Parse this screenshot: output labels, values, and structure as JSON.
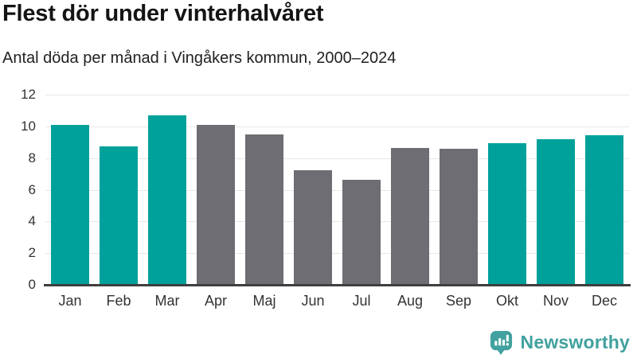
{
  "header": {
    "title": "Flest dör under vinterhalvåret",
    "subtitle": "Antal döda per månad i Vingåkers kommun, 2000–2024"
  },
  "chart_data": {
    "type": "bar",
    "title": "Flest dör under vinterhalvåret",
    "subtitle": "Antal döda per månad i Vingåkers kommun, 2000–2024",
    "categories": [
      "Jan",
      "Feb",
      "Mar",
      "Apr",
      "Maj",
      "Jun",
      "Jul",
      "Aug",
      "Sep",
      "Okt",
      "Nov",
      "Dec"
    ],
    "values": [
      10.1,
      8.75,
      10.7,
      10.1,
      9.5,
      7.25,
      6.65,
      8.65,
      8.6,
      8.95,
      9.2,
      9.45
    ],
    "highlighted": [
      true,
      true,
      true,
      false,
      false,
      false,
      false,
      false,
      false,
      true,
      true,
      true
    ],
    "xlabel": "",
    "ylabel": "",
    "ylim": [
      0,
      12
    ],
    "yticks": [
      0,
      2,
      4,
      6,
      8,
      10,
      12
    ],
    "grid": true,
    "legend": false,
    "palette": {
      "highlight": "#00A19A",
      "regular": "#6D6D73",
      "gridline": "#E7E7E7",
      "axis": "#3F3F3F",
      "tick_text": "#333333"
    }
  },
  "footer": {
    "brand": "Newsworthy",
    "brand_color": "#41A19E"
  }
}
